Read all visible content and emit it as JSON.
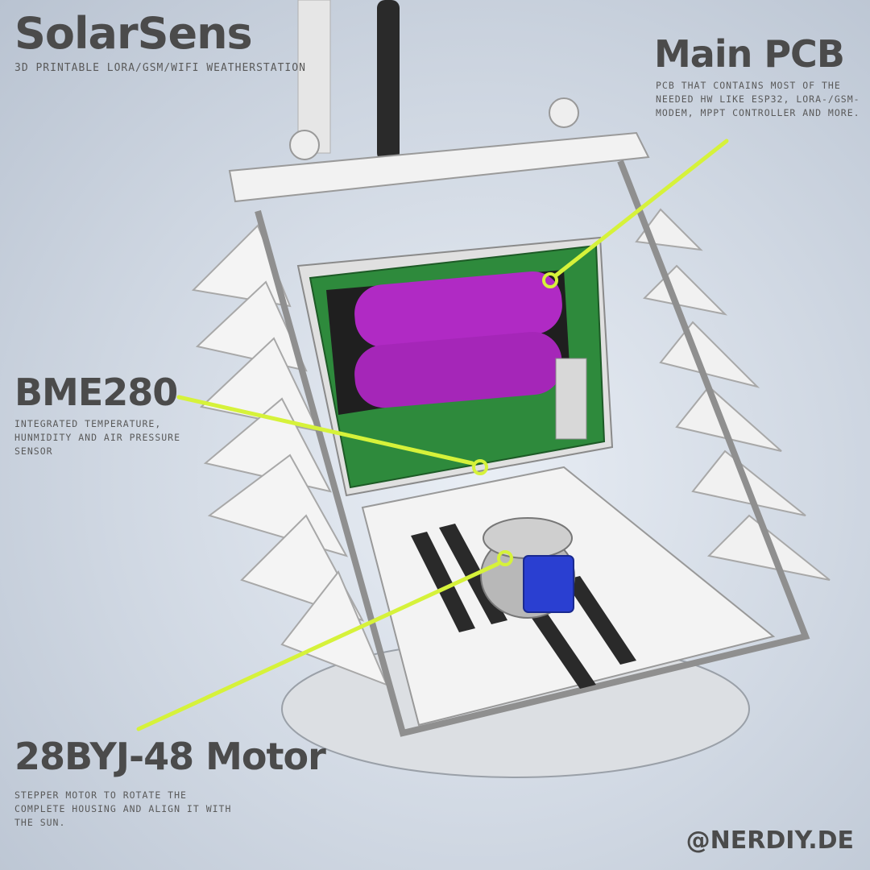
{
  "brand": {
    "title": "SolarSens",
    "subtitle": "3D printable LoRa/GSM/WiFi Weatherstation"
  },
  "callouts": {
    "main_pcb": {
      "title": "Main PCB",
      "description": "PCB that contains most of the needed HW like ESP32, LoRa-/GSM-Modem, MPPT Controller and more."
    },
    "bme280": {
      "title": "BME280",
      "description": "Integrated temperature, hunmidity and air pressure sensor"
    },
    "motor": {
      "title": "28BYJ-48 Motor",
      "description": "Stepper motor to rotate the complete housing and align it with the sun."
    }
  },
  "footer": {
    "handle": "@NERDIY.DE"
  },
  "colors": {
    "callout_line": "#d6f23a",
    "battery": "#b02ac4",
    "pcb": "#2e8a3c",
    "motor_cap": "#2a3fd1"
  }
}
